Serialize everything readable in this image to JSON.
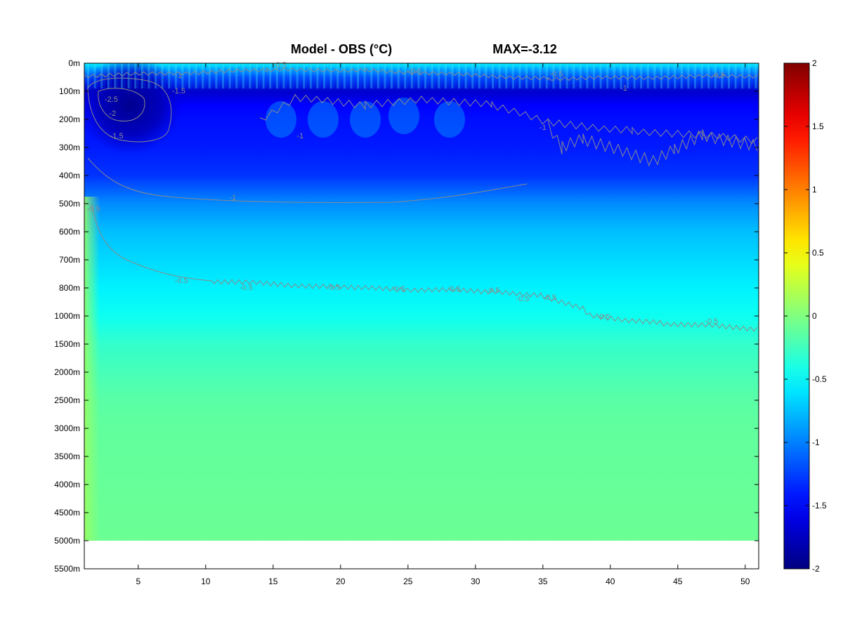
{
  "chart_data": {
    "type": "heatmap",
    "title": "Model - OBS (°C)",
    "annotation": "MAX=-3.12",
    "xlabel": "",
    "ylabel": "",
    "x_range": [
      1,
      51
    ],
    "x_ticks": [
      "5",
      "10",
      "15",
      "20",
      "25",
      "30",
      "35",
      "40",
      "45",
      "50"
    ],
    "x_tick_values": [
      5,
      10,
      15,
      20,
      25,
      30,
      35,
      40,
      45,
      50
    ],
    "y_ticks": [
      "0m",
      "100m",
      "200m",
      "300m",
      "400m",
      "500m",
      "600m",
      "700m",
      "800m",
      "1000m",
      "1500m",
      "2000m",
      "2500m",
      "3000m",
      "3500m",
      "4000m",
      "4500m",
      "5000m",
      "5500m"
    ],
    "y_tick_depths": [
      0,
      100,
      200,
      300,
      400,
      500,
      600,
      700,
      800,
      1000,
      1500,
      2000,
      2500,
      3000,
      3500,
      4000,
      4500,
      5000,
      5500
    ],
    "data_bottom_depth": 5000,
    "colorbar": {
      "range": [
        -2,
        2
      ],
      "ticks": [
        "2",
        "1.5",
        "1",
        "0.5",
        "0",
        "-0.5",
        "-1",
        "-1.5",
        "-2"
      ],
      "tick_values": [
        2,
        1.5,
        1,
        0.5,
        0,
        -0.5,
        -1,
        -1.5,
        -2
      ],
      "colormap": "jet"
    },
    "field_profile_depth_m": [
      0,
      50,
      100,
      150,
      200,
      300,
      400,
      500,
      600,
      700,
      800,
      1000,
      1500,
      2000,
      2500,
      3000,
      4000,
      5000
    ],
    "field_profile_value_c": [
      -0.55,
      -1.2,
      -1.7,
      -1.5,
      -1.45,
      -1.4,
      -1.3,
      -0.95,
      -0.75,
      -0.65,
      -0.55,
      -0.45,
      -0.3,
      -0.22,
      -0.15,
      -0.12,
      -0.1,
      -0.08
    ],
    "contour_levels": [
      -2.5,
      -2,
      -1.5,
      -1,
      -0.5
    ],
    "contour_labels": [
      {
        "text": "-0.5",
        "x": 15.5,
        "depth": 8
      },
      {
        "text": "-0.5",
        "x": 25.5,
        "depth": 30
      },
      {
        "text": "-0.5",
        "x": 36,
        "depth": 40
      },
      {
        "text": "-0.5",
        "x": 48,
        "depth": 45
      },
      {
        "text": "-1",
        "x": 8,
        "depth": 45
      },
      {
        "text": "-1",
        "x": 41,
        "depth": 90
      },
      {
        "text": "-1.5",
        "x": 8,
        "depth": 100
      },
      {
        "text": "-2.5",
        "x": 3,
        "depth": 130
      },
      {
        "text": "-2",
        "x": 3.1,
        "depth": 180
      },
      {
        "text": "-1.5",
        "x": 3.4,
        "depth": 260
      },
      {
        "text": "-1",
        "x": 17,
        "depth": 260
      },
      {
        "text": "-1",
        "x": 35,
        "depth": 230
      },
      {
        "text": "-1",
        "x": 12,
        "depth": 480
      },
      {
        "text": "-0.5",
        "x": 1.7,
        "depth": 520
      },
      {
        "text": "-0.5",
        "x": 8.2,
        "depth": 775
      },
      {
        "text": "-0.5",
        "x": 13,
        "depth": 800
      },
      {
        "text": "-0.5",
        "x": 19.5,
        "depth": 800
      },
      {
        "text": "-0.5",
        "x": 24.3,
        "depth": 810
      },
      {
        "text": "-0.5",
        "x": 28.4,
        "depth": 810
      },
      {
        "text": "-0.5",
        "x": 31.3,
        "depth": 820
      },
      {
        "text": "-0.5",
        "x": 33.5,
        "depth": 880
      },
      {
        "text": "-0.5",
        "x": 35.5,
        "depth": 870
      },
      {
        "text": "-0.5",
        "x": 39.5,
        "depth": 1020
      },
      {
        "text": "-0.5",
        "x": 47.5,
        "depth": 1100
      }
    ]
  }
}
